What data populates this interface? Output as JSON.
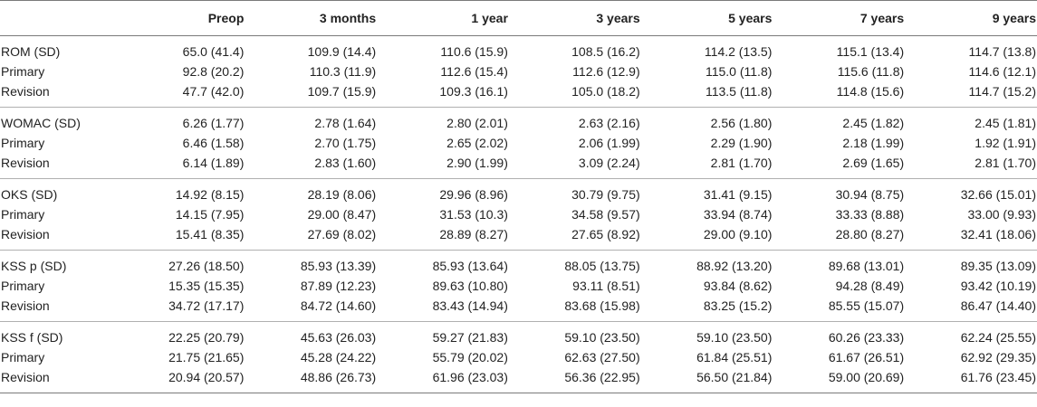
{
  "headers": [
    "",
    "Preop",
    "3 months",
    "1 year",
    "3 years",
    "5 years",
    "7 years",
    "9 years"
  ],
  "groups": [
    [
      [
        "ROM (SD)",
        "65.0 (41.4)",
        "109.9 (14.4)",
        "110.6 (15.9)",
        "108.5 (16.2)",
        "114.2 (13.5)",
        "115.1 (13.4)",
        "114.7 (13.8)"
      ],
      [
        "Primary",
        "92.8 (20.2)",
        "110.3 (11.9)",
        "112.6 (15.4)",
        "112.6 (12.9)",
        "115.0 (11.8)",
        "115.6 (11.8)",
        "114.6 (12.1)"
      ],
      [
        "Revision",
        "47.7 (42.0)",
        "109.7 (15.9)",
        "109.3 (16.1)",
        "105.0 (18.2)",
        "113.5 (11.8)",
        "114.8 (15.6)",
        "114.7 (15.2)"
      ]
    ],
    [
      [
        "WOMAC (SD)",
        "6.26 (1.77)",
        "2.78 (1.64)",
        "2.80 (2.01)",
        "2.63 (2.16)",
        "2.56 (1.80)",
        "2.45 (1.82)",
        "2.45 (1.81)"
      ],
      [
        "Primary",
        "6.46 (1.58)",
        "2.70 (1.75)",
        "2.65 (2.02)",
        "2.06 (1.99)",
        "2.29 (1.90)",
        "2.18 (1.99)",
        "1.92 (1.91)"
      ],
      [
        "Revision",
        "6.14 (1.89)",
        "2.83 (1.60)",
        "2.90 (1.99)",
        "3.09 (2.24)",
        "2.81 (1.70)",
        "2.69 (1.65)",
        "2.81 (1.70)"
      ]
    ],
    [
      [
        "OKS (SD)",
        "14.92 (8.15)",
        "28.19 (8.06)",
        "29.96 (8.96)",
        "30.79 (9.75)",
        "31.41 (9.15)",
        "30.94 (8.75)",
        "32.66 (15.01)"
      ],
      [
        "Primary",
        "14.15 (7.95)",
        "29.00 (8.47)",
        "31.53 (10.3)",
        "34.58 (9.57)",
        "33.94 (8.74)",
        "33.33 (8.88)",
        "33.00 (9.93)"
      ],
      [
        "Revision",
        "15.41 (8.35)",
        "27.69 (8.02)",
        "28.89 (8.27)",
        "27.65 (8.92)",
        "29.00 (9.10)",
        "28.80 (8.27)",
        "32.41 (18.06)"
      ]
    ],
    [
      [
        "KSS p (SD)",
        "27.26 (18.50)",
        "85.93 (13.39)",
        "85.93 (13.64)",
        "88.05 (13.75)",
        "88.92 (13.20)",
        "89.68 (13.01)",
        "89.35 (13.09)"
      ],
      [
        "Primary",
        "15.35 (15.35)",
        "87.89 (12.23)",
        "89.63 (10.80)",
        "93.11 (8.51)",
        "93.84 (8.62)",
        "94.28 (8.49)",
        "93.42 (10.19)"
      ],
      [
        "Revision",
        "34.72 (17.17)",
        "84.72 (14.60)",
        "83.43 (14.94)",
        "83.68 (15.98)",
        "83.25 (15.2)",
        "85.55 (15.07)",
        "86.47 (14.40)"
      ]
    ],
    [
      [
        "KSS f (SD)",
        "22.25 (20.79)",
        "45.63 (26.03)",
        "59.27 (21.83)",
        "59.10 (23.50)",
        "59.10 (23.50)",
        "60.26 (23.33)",
        "62.24 (25.55)"
      ],
      [
        "Primary",
        "21.75 (21.65)",
        "45.28 (24.22)",
        "55.79 (20.02)",
        "62.63 (27.50)",
        "61.84 (25.51)",
        "61.67 (26.51)",
        "62.92 (29.35)"
      ],
      [
        "Revision",
        "20.94 (20.57)",
        "48.86 (26.73)",
        "61.96 (23.03)",
        "56.36 (22.95)",
        "56.50 (21.84)",
        "59.00 (20.69)",
        "61.76 (23.45)"
      ]
    ]
  ]
}
